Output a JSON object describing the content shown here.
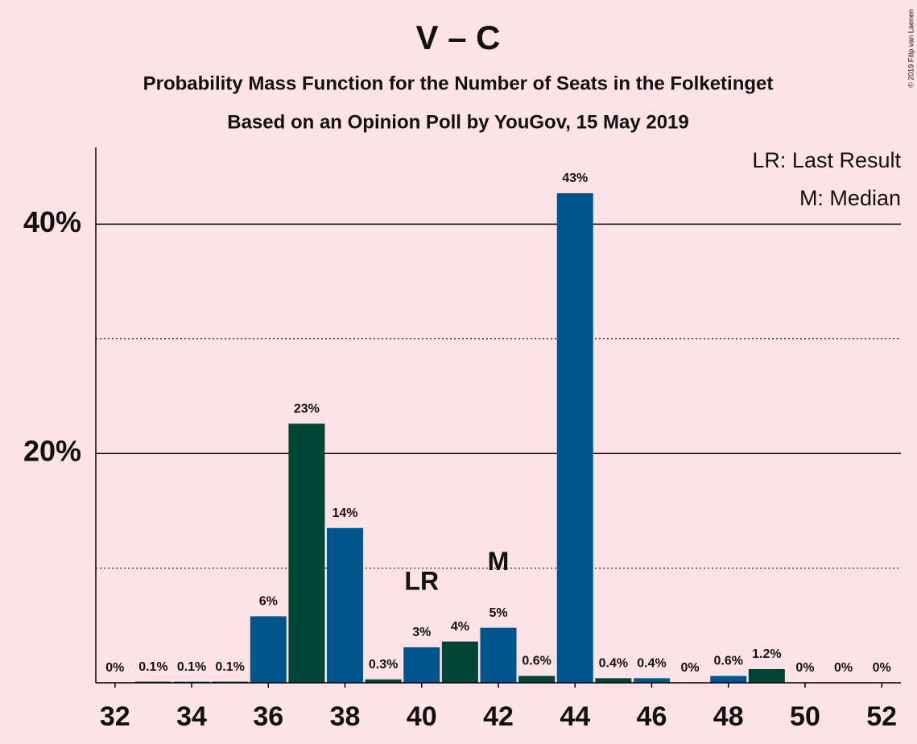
{
  "chart_data": {
    "type": "bar",
    "title": "V – C",
    "subtitle": "Probability Mass Function for the Number of Seats in the Folketinget",
    "subtitle2": "Based on an Opinion Poll by YouGov, 15 May 2019",
    "copyright": "© 2019 Filip van Laenen",
    "x": [
      32,
      33,
      34,
      35,
      36,
      37,
      38,
      39,
      40,
      41,
      42,
      43,
      44,
      45,
      46,
      47,
      48,
      49,
      50,
      51,
      52
    ],
    "values": [
      0,
      0.1,
      0.1,
      0.1,
      5.8,
      22.6,
      13.5,
      0.3,
      3.1,
      3.6,
      4.8,
      0.6,
      42.7,
      0.4,
      0.4,
      0,
      0.6,
      1.2,
      0,
      0,
      0
    ],
    "value_labels": [
      "0%",
      "0.1%",
      "0.1%",
      "0.1%",
      "6%",
      "23%",
      "14%",
      "0.3%",
      "3%",
      "4%",
      "5%",
      "0.6%",
      "43%",
      "0.4%",
      "0.4%",
      "0%",
      "0.6%",
      "1.2%",
      "0%",
      "0%",
      "0%"
    ],
    "colors": [
      "#00558c",
      "#004433",
      "#00558c",
      "#004433",
      "#00558c",
      "#004433",
      "#00558c",
      "#004433",
      "#00558c",
      "#004433",
      "#00558c",
      "#004433",
      "#00558c",
      "#004433",
      "#00558c",
      "#004433",
      "#00558c",
      "#004433",
      "#00558c",
      "#004433",
      "#00558c"
    ],
    "xlim": [
      31.5,
      52.5
    ],
    "xticks": [
      32,
      34,
      36,
      38,
      40,
      42,
      44,
      46,
      48,
      50,
      52
    ],
    "ylim": [
      0,
      46.7
    ],
    "yticks": [
      {
        "value": 20,
        "label": "20%"
      },
      {
        "value": 40,
        "label": "40%"
      }
    ],
    "minor_yticks": [
      10,
      30
    ],
    "grid": true,
    "annotations": [
      {
        "text": "LR",
        "x": 40
      },
      {
        "text": "M",
        "x": 42
      }
    ],
    "legend": [
      "LR: Last Result",
      "M: Median"
    ]
  }
}
